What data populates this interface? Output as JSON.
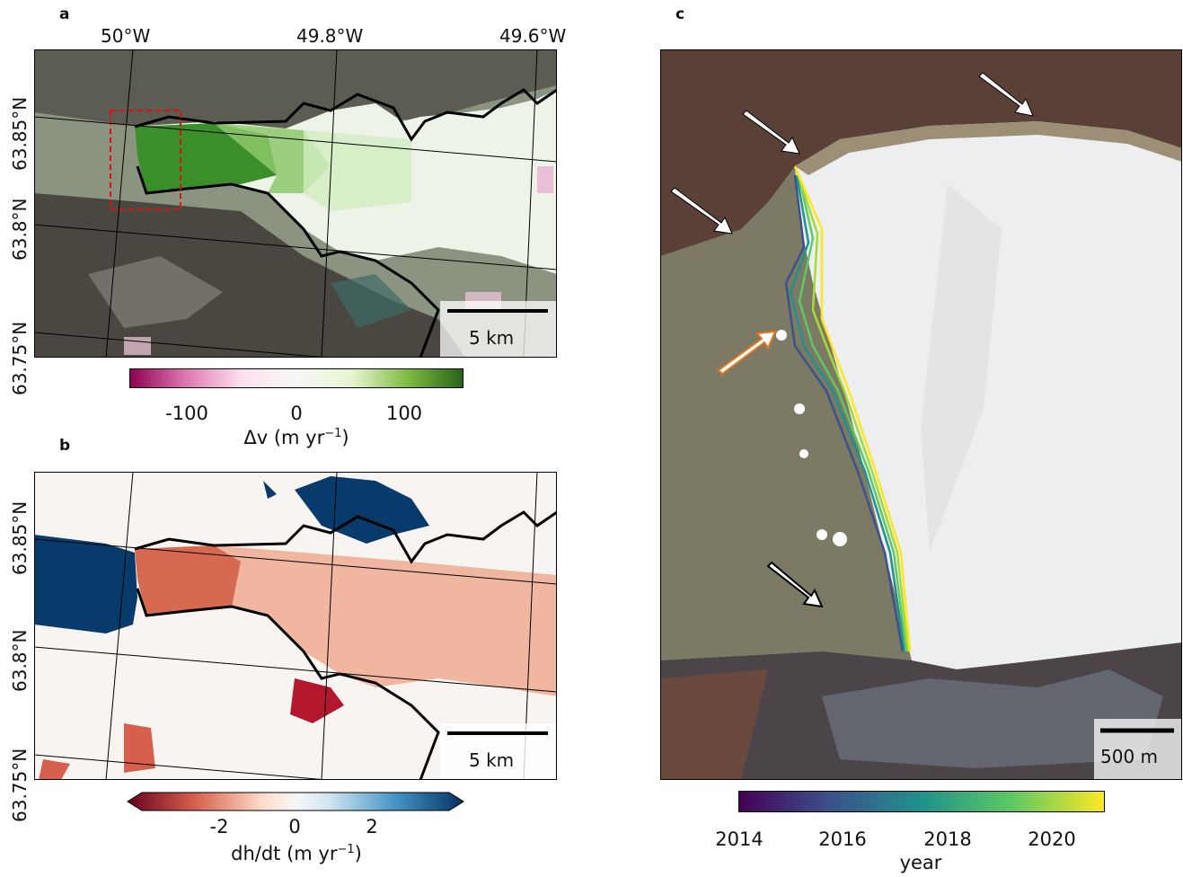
{
  "panel_a": {
    "letter": "a",
    "top_ticks": [
      "50°W",
      "49.8°W",
      "49.6°W"
    ],
    "left_ticks": [
      "63.85°N",
      "63.8°N",
      "63.75°N"
    ],
    "scale_bar": "5 km",
    "colorbar": {
      "ticks": [
        "-100",
        "0",
        "100"
      ],
      "label": "Δv (m yr",
      "label_sup": "−1",
      "label_end": ")",
      "colors": [
        "#8e0152",
        "#de77ae",
        "#fde0ef",
        "#f7f7f7",
        "#e6f5d0",
        "#7fbc41",
        "#276419"
      ]
    }
  },
  "panel_b": {
    "letter": "b",
    "left_ticks": [
      "63.85°N",
      "63.8°N",
      "63.75°N"
    ],
    "scale_bar": "5 km",
    "colorbar": {
      "ticks": [
        "-2",
        "0",
        "2"
      ],
      "label": "dh/dt (m yr",
      "label_sup": "−1",
      "label_end": ")",
      "colors": [
        "#67001f",
        "#d6604d",
        "#fddbc7",
        "#f7f7f7",
        "#d1e5f0",
        "#4393c3",
        "#053061"
      ]
    }
  },
  "panel_c": {
    "letter": "c",
    "scale_bar": "500 m",
    "colorbar": {
      "ticks": [
        "2014",
        "2016",
        "2018",
        "2020"
      ],
      "label": "year",
      "colors": [
        "#440154",
        "#3b528b",
        "#21918c",
        "#5ec962",
        "#fde725"
      ]
    },
    "arrows": [
      "white-arrow",
      "white-arrow",
      "white-arrow",
      "white-arrow",
      "orange-arrow",
      "black-arrow"
    ]
  }
}
